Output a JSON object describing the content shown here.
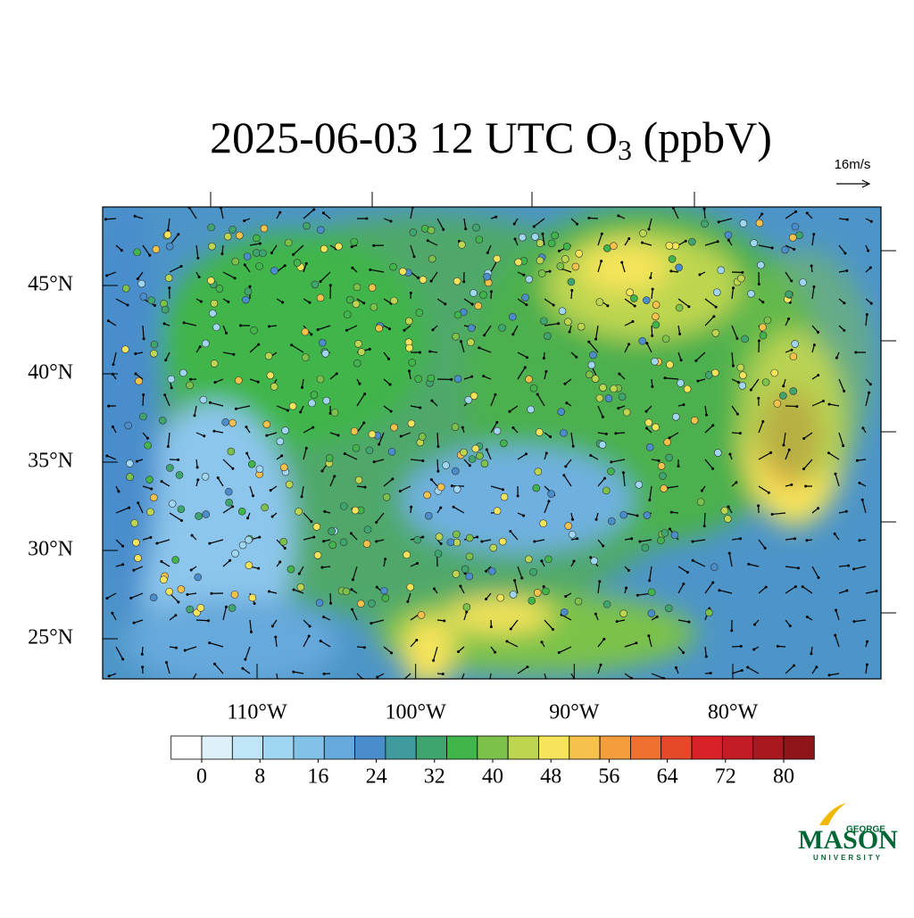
{
  "title": {
    "main": "2025-06-03 12 UTC O",
    "subscript": "3",
    "suffix": " (ppbV)"
  },
  "vector_reference": "16m/s",
  "latitude_ticks": [
    {
      "value": 45,
      "label": "45°N"
    },
    {
      "value": 40,
      "label": "40°N"
    },
    {
      "value": 35,
      "label": "35°N"
    },
    {
      "value": 30,
      "label": "30°N"
    },
    {
      "value": 25,
      "label": "25°N"
    }
  ],
  "longitude_ticks": [
    {
      "value": -110,
      "label": "110°W"
    },
    {
      "value": -100,
      "label": "100°W"
    },
    {
      "value": -90,
      "label": "90°W"
    },
    {
      "value": -80,
      "label": "80°W"
    }
  ],
  "colorbar": {
    "ticks": [
      0,
      8,
      16,
      24,
      32,
      40,
      48,
      56,
      64,
      72,
      80
    ],
    "colors": [
      "#ffffff",
      "#def1fa",
      "#bfe5f7",
      "#9fd6f2",
      "#82c2e8",
      "#66a9dc",
      "#4a8dcc",
      "#409c9c",
      "#3ea56e",
      "#3fb54a",
      "#7cc24a",
      "#bdd650",
      "#f6e45a",
      "#f7c24b",
      "#f59c3d",
      "#f0702f",
      "#e5492a",
      "#d92128",
      "#c21d24",
      "#a8181f",
      "#8e151a"
    ]
  },
  "logo": {
    "top": "GEORGE",
    "main": "MASON",
    "bottom": "UNIVERSITY"
  }
}
